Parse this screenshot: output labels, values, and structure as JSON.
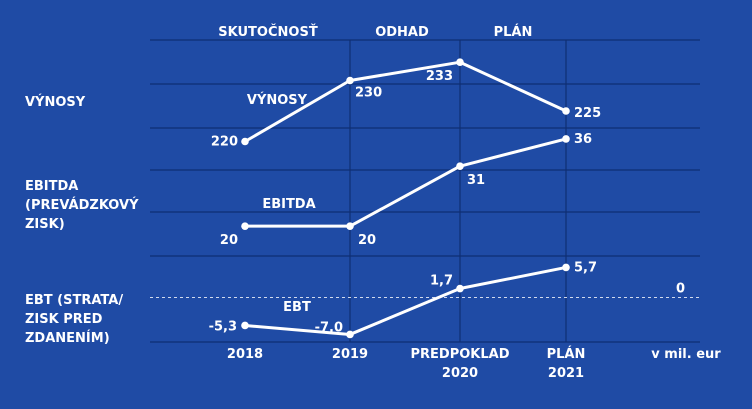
{
  "chart_data": {
    "type": "line",
    "headers": [
      "SKUTOČNOSŤ",
      "ODHAD",
      "PLÁN"
    ],
    "categories": [
      {
        "line1": "2018",
        "line2": ""
      },
      {
        "line1": "2019",
        "line2": ""
      },
      {
        "line1": "PREDPOKLAD",
        "line2": "2020"
      },
      {
        "line1": "PLÁN",
        "line2": "2021"
      }
    ],
    "unit": "v mil. eur",
    "zero_label": "0",
    "panels": [
      {
        "id": "vynosy",
        "row_label": [
          "VÝNOSY"
        ],
        "series_name": "VÝNOSY",
        "values": [
          220,
          230,
          233,
          225
        ],
        "value_labels": [
          "220",
          "230",
          "233",
          "225"
        ],
        "ylim": [
          215,
          235
        ]
      },
      {
        "id": "ebitda",
        "row_label": [
          "EBITDA",
          "(PREVÁDZKOVÝ",
          "ZISK)"
        ],
        "series_name": "EBITDA",
        "values": [
          20,
          20,
          31,
          36
        ],
        "value_labels": [
          "20",
          "20",
          "31",
          "36"
        ],
        "ylim": [
          16,
          38
        ]
      },
      {
        "id": "ebt",
        "row_label": [
          "EBT (STRATA/",
          "ZISK PRED",
          "ZDANENÍM)"
        ],
        "series_name": "EBT",
        "values": [
          -5.3,
          -7.0,
          1.7,
          5.7
        ],
        "value_labels": [
          "-5,3",
          "-7,0",
          "1,7",
          "5,7"
        ],
        "ylim": [
          -9,
          9
        ]
      }
    ],
    "colors": {
      "background": "#1f4ba5",
      "line": "#ffffff",
      "grid": "#0f2f73"
    }
  }
}
